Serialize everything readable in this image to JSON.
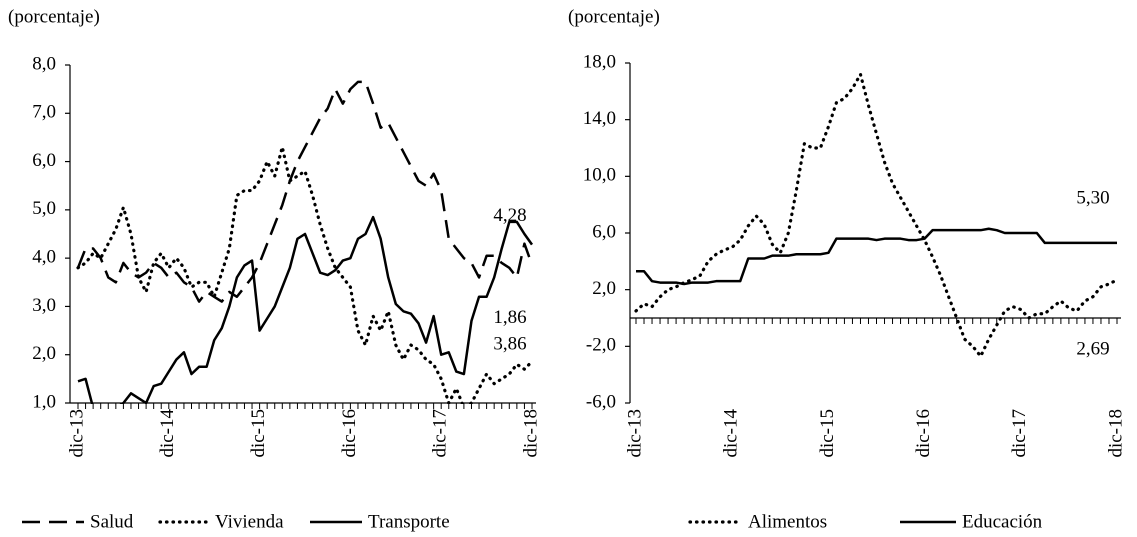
{
  "chart_data": [
    {
      "type": "line",
      "y_label": "(porcentaje)",
      "categories": [
        "dic-13",
        null,
        null,
        null,
        null,
        null,
        null,
        null,
        null,
        null,
        null,
        null,
        "dic-14",
        null,
        null,
        null,
        null,
        null,
        null,
        null,
        null,
        null,
        null,
        null,
        "dic-15",
        null,
        null,
        null,
        null,
        null,
        null,
        null,
        null,
        null,
        null,
        null,
        "dic-16",
        null,
        null,
        null,
        null,
        null,
        null,
        null,
        null,
        null,
        null,
        null,
        "dic-17",
        null,
        null,
        null,
        null,
        null,
        null,
        null,
        null,
        null,
        null,
        null,
        "dic-18"
      ],
      "ylim": [
        1,
        8
      ],
      "yticks": [
        {
          "value": 1,
          "label": "1,0"
        },
        {
          "value": 2,
          "label": "2,0"
        },
        {
          "value": 3,
          "label": "3,0"
        },
        {
          "value": 4,
          "label": "4,0"
        },
        {
          "value": 5,
          "label": "5,0"
        },
        {
          "value": 6,
          "label": "6,0"
        },
        {
          "value": 7,
          "label": "7,0"
        },
        {
          "value": 8,
          "label": "8,0"
        }
      ],
      "legend": "bottom",
      "series": [
        {
          "name": "Salud",
          "color": "#000000",
          "dash": "dashed",
          "end_label": "3,86",
          "values": [
            3.8,
            4.2,
            4.2,
            4.0,
            3.6,
            3.5,
            3.9,
            3.7,
            3.6,
            3.7,
            3.9,
            3.8,
            3.6,
            3.7,
            3.5,
            3.4,
            3.1,
            3.3,
            3.2,
            3.1,
            3.3,
            3.2,
            3.4,
            3.6,
            3.9,
            4.3,
            4.7,
            5.1,
            5.6,
            6.0,
            6.3,
            6.6,
            6.9,
            7.1,
            7.5,
            7.2,
            7.5,
            7.65,
            7.65,
            7.2,
            6.7,
            6.8,
            6.5,
            6.2,
            5.9,
            5.6,
            5.5,
            5.75,
            5.4,
            4.4,
            4.2,
            4.0,
            3.9,
            3.6,
            4.05,
            4.05,
            3.9,
            3.8,
            3.6,
            4.3,
            3.86
          ]
        },
        {
          "name": "Vivienda",
          "color": "#000000",
          "dash": "dotted",
          "end_label": "1,86",
          "values": [
            3.8,
            3.9,
            4.1,
            4.0,
            4.3,
            4.6,
            5.05,
            4.5,
            3.6,
            3.3,
            3.9,
            4.1,
            3.8,
            4.0,
            3.8,
            3.4,
            3.5,
            3.5,
            3.2,
            3.7,
            4.2,
            5.3,
            5.4,
            5.4,
            5.6,
            6.0,
            5.7,
            6.3,
            5.6,
            5.7,
            5.8,
            5.3,
            4.7,
            4.2,
            3.8,
            3.6,
            3.4,
            2.5,
            2.2,
            2.8,
            2.5,
            2.9,
            2.2,
            1.9,
            2.2,
            2.1,
            1.9,
            1.8,
            1.5,
            1.0,
            1.3,
            0.9,
            1.0,
            1.3,
            1.6,
            1.4,
            1.5,
            1.6,
            1.8,
            1.7,
            1.86
          ]
        },
        {
          "name": "Transporte",
          "color": "#000000",
          "dash": "solid",
          "end_label": "4,28",
          "values": [
            1.45,
            1.5,
            0.9,
            0.9,
            0.9,
            0.9,
            1.0,
            1.2,
            1.1,
            1.0,
            1.35,
            1.4,
            1.65,
            1.9,
            2.05,
            1.6,
            1.75,
            1.75,
            2.3,
            2.55,
            3.0,
            3.6,
            3.85,
            3.95,
            2.5,
            2.75,
            3.0,
            3.4,
            3.8,
            4.4,
            4.5,
            4.1,
            3.7,
            3.65,
            3.75,
            3.95,
            4.0,
            4.4,
            4.5,
            4.85,
            4.4,
            3.6,
            3.05,
            2.9,
            2.85,
            2.65,
            2.25,
            2.8,
            2.0,
            2.05,
            1.65,
            1.6,
            2.7,
            3.2,
            3.2,
            3.6,
            4.2,
            4.75,
            4.75,
            4.5,
            4.28
          ]
        }
      ]
    },
    {
      "type": "line",
      "y_label": "(porcentaje)",
      "categories": [
        "dic-13",
        null,
        null,
        null,
        null,
        null,
        null,
        null,
        null,
        null,
        null,
        null,
        "dic-14",
        null,
        null,
        null,
        null,
        null,
        null,
        null,
        null,
        null,
        null,
        null,
        "dic-15",
        null,
        null,
        null,
        null,
        null,
        null,
        null,
        null,
        null,
        null,
        null,
        "dic-16",
        null,
        null,
        null,
        null,
        null,
        null,
        null,
        null,
        null,
        null,
        null,
        "dic-17",
        null,
        null,
        null,
        null,
        null,
        null,
        null,
        null,
        null,
        null,
        null,
        "dic-18"
      ],
      "ylim": [
        -6,
        18
      ],
      "yticks": [
        {
          "value": -6,
          "label": "-6,0"
        },
        {
          "value": -2,
          "label": "-2,0"
        },
        {
          "value": 2,
          "label": "2,0"
        },
        {
          "value": 6,
          "label": "6,0"
        },
        {
          "value": 10,
          "label": "10,0"
        },
        {
          "value": 14,
          "label": "14,0"
        },
        {
          "value": 18,
          "label": "18,0"
        }
      ],
      "legend": "bottom",
      "series": [
        {
          "name": "Alimentos",
          "color": "#000000",
          "dash": "dotted",
          "end_label": "2,69",
          "values": [
            0.5,
            1.0,
            0.8,
            1.5,
            2.0,
            2.2,
            2.5,
            2.7,
            3.0,
            4.0,
            4.5,
            4.8,
            5.0,
            5.5,
            6.5,
            7.2,
            6.6,
            5.2,
            4.6,
            6.0,
            9.0,
            12.3,
            12.0,
            12.0,
            13.5,
            15.2,
            15.5,
            16.2,
            17.2,
            15.0,
            13.0,
            11.0,
            9.5,
            8.5,
            7.5,
            6.5,
            5.5,
            4.3,
            3.0,
            1.5,
            0.0,
            -1.5,
            -2.0,
            -2.7,
            -1.5,
            -0.5,
            0.5,
            0.8,
            0.6,
            0.0,
            0.3,
            0.3,
            0.8,
            1.2,
            0.7,
            0.5,
            1.2,
            1.5,
            2.2,
            2.4,
            2.69
          ]
        },
        {
          "name": "Educación",
          "color": "#000000",
          "dash": "solid",
          "end_label": "5,30",
          "values": [
            3.3,
            3.3,
            2.6,
            2.5,
            2.5,
            2.5,
            2.4,
            2.5,
            2.5,
            2.5,
            2.6,
            2.6,
            2.6,
            2.6,
            4.2,
            4.2,
            4.2,
            4.4,
            4.4,
            4.4,
            4.5,
            4.5,
            4.5,
            4.5,
            4.6,
            5.6,
            5.6,
            5.6,
            5.6,
            5.6,
            5.5,
            5.6,
            5.6,
            5.6,
            5.5,
            5.5,
            5.6,
            6.2,
            6.2,
            6.2,
            6.2,
            6.2,
            6.2,
            6.2,
            6.3,
            6.2,
            6.0,
            6.0,
            6.0,
            6.0,
            6.0,
            5.3,
            5.3,
            5.3,
            5.3,
            5.3,
            5.3,
            5.3,
            5.3,
            5.3,
            5.3
          ]
        }
      ]
    }
  ]
}
